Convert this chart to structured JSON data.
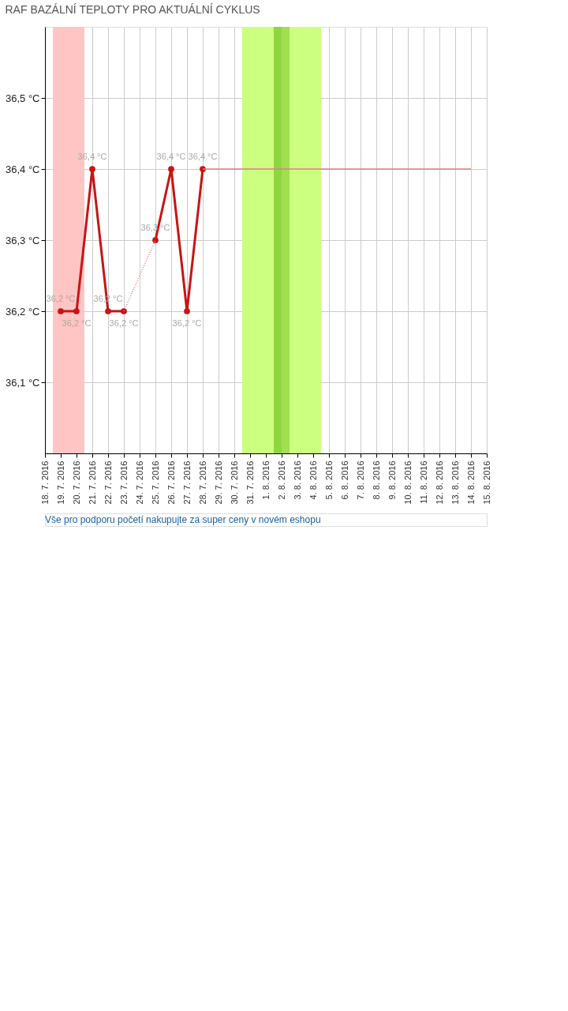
{
  "chart_data": {
    "type": "line",
    "title": "RAF BAZÁLNÍ TEPLOTY PRO AKTUÁLNÍ CYKLUS",
    "series": [
      {
        "color": "#c81414",
        "marker": "circle",
        "line_style": "solid",
        "x": [
          "2016-07-19",
          "2016-07-20",
          "2016-07-21",
          "2016-07-22",
          "2016-07-23",
          "2016-07-24",
          "2016-07-25",
          "2016-07-26",
          "2016-07-27",
          "2016-07-28"
        ],
        "values": [
          36.2,
          36.2,
          36.4,
          36.2,
          36.2,
          null,
          36.3,
          36.4,
          36.2,
          36.4
        ],
        "value_labels": [
          "36,2 °C",
          "36,2 °C",
          "36,4 °C",
          "36,2 °C",
          "36,2 °C",
          null,
          "36,3 °C",
          "36,4 °C",
          "36,2 °C",
          "36,4 °C"
        ]
      },
      {
        "color": "#d98080",
        "marker": "none",
        "line_style": "dotted",
        "x": [
          "2016-07-23",
          "2016-07-25"
        ],
        "values": [
          36.2,
          36.3
        ]
      },
      {
        "color": "#d98080",
        "marker": "none",
        "line_style": "solid",
        "x": [
          "2016-07-28",
          "2016-08-14"
        ],
        "values": [
          36.4,
          36.4
        ]
      }
    ],
    "xlim": [
      "2016-07-18",
      "2016-08-15"
    ],
    "xticks": [
      {
        "value": "2016-07-18",
        "label": "18. 7. 2016"
      },
      {
        "value": "2016-07-19",
        "label": "19. 7. 2016"
      },
      {
        "value": "2016-07-20",
        "label": "20. 7. 2016"
      },
      {
        "value": "2016-07-21",
        "label": "21. 7. 2016"
      },
      {
        "value": "2016-07-22",
        "label": "22. 7. 2016"
      },
      {
        "value": "2016-07-23",
        "label": "23. 7. 2016"
      },
      {
        "value": "2016-07-24",
        "label": "24. 7. 2016"
      },
      {
        "value": "2016-07-25",
        "label": "25. 7. 2016"
      },
      {
        "value": "2016-07-26",
        "label": "26. 7. 2016"
      },
      {
        "value": "2016-07-27",
        "label": "27. 7. 2016"
      },
      {
        "value": "2016-07-28",
        "label": "28. 7. 2016"
      },
      {
        "value": "2016-07-29",
        "label": "29. 7. 2016"
      },
      {
        "value": "2016-07-30",
        "label": "30. 7. 2016"
      },
      {
        "value": "2016-07-31",
        "label": "31. 7. 2016"
      },
      {
        "value": "2016-08-01",
        "label": "1. 8. 2016"
      },
      {
        "value": "2016-08-02",
        "label": "2. 8. 2016"
      },
      {
        "value": "2016-08-03",
        "label": "3. 8. 2016"
      },
      {
        "value": "2016-08-04",
        "label": "4. 8. 2016"
      },
      {
        "value": "2016-08-05",
        "label": "5. 8. 2016"
      },
      {
        "value": "2016-08-06",
        "label": "6. 8. 2016"
      },
      {
        "value": "2016-08-07",
        "label": "7. 8. 2016"
      },
      {
        "value": "2016-08-08",
        "label": "8. 8. 2016"
      },
      {
        "value": "2016-08-09",
        "label": "9. 8. 2016"
      },
      {
        "value": "2016-08-10",
        "label": "10. 8. 2016"
      },
      {
        "value": "2016-08-11",
        "label": "11. 8. 2016"
      },
      {
        "value": "2016-08-12",
        "label": "12. 8. 2016"
      },
      {
        "value": "2016-08-13",
        "label": "13. 8. 2016"
      },
      {
        "value": "2016-08-14",
        "label": "14. 8. 2016"
      },
      {
        "value": "2016-08-15",
        "label": "15. 8. 2016"
      }
    ],
    "ylim": [
      36.0,
      36.6
    ],
    "yticks": [
      {
        "value": 36.1,
        "label": "36,1 °C"
      },
      {
        "value": 36.2,
        "label": "36,2 °C"
      },
      {
        "value": 36.3,
        "label": "36,3 °C"
      },
      {
        "value": 36.4,
        "label": "36,4 °C"
      },
      {
        "value": 36.5,
        "label": "36,5 °C"
      }
    ],
    "bands": [
      {
        "axis": "x",
        "from": "2016-07-18T12:00",
        "to": "2016-07-20T12:00",
        "color": "#ffc4c4"
      },
      {
        "axis": "x",
        "from": "2016-07-30T12:00",
        "to": "2016-08-04T12:00",
        "color": "#ccff80"
      },
      {
        "axis": "x",
        "from": "2016-08-01T12:00",
        "to": "2016-08-02T12:00",
        "color": "#a0e050"
      },
      {
        "axis": "x",
        "from": "2016-08-01T12:00",
        "to": "2016-08-02T00:00",
        "color": "#8ed640"
      }
    ],
    "grid": true,
    "annotations": [
      "Vše pro podporu početí nakupujte za super ceny v novém eshopu"
    ]
  }
}
